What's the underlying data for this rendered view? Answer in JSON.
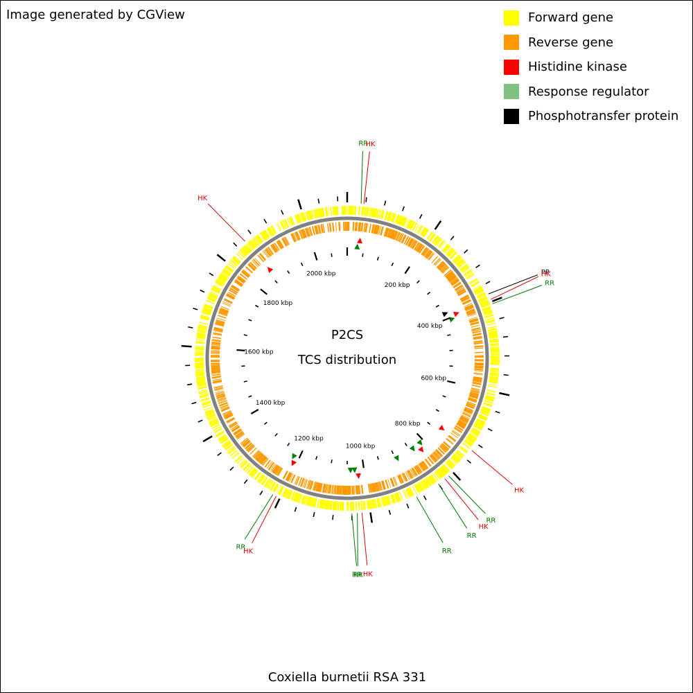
{
  "credit": "Image generated by CGView",
  "caption": "Coxiella burnetii RSA 331",
  "center": {
    "line1": "P2CS",
    "line2": "TCS distribution"
  },
  "legend": [
    {
      "label": "Forward gene",
      "color": "#ffff00"
    },
    {
      "label": "Reverse gene",
      "color": "#ff9900"
    },
    {
      "label": "Histidine kinase",
      "color": "#ff0000"
    },
    {
      "label": "Response regulator",
      "color": "#80c080"
    },
    {
      "label": "Phosphotransfer protein",
      "color": "#000000"
    }
  ],
  "colors": {
    "forward": "#ffff00",
    "reverse": "#ff9900",
    "hk": "#ff0000",
    "hk_label": "#dd0000",
    "rr_marker": "#008000",
    "rr_label": "#007700",
    "pp": "#000000",
    "backbone": "#808080"
  },
  "genome_length_kbp": 2100,
  "scale_labels": [
    "200 kbp",
    "400 kbp",
    "600 kbp",
    "800 kbp",
    "1000 kbp",
    "1200 kbp",
    "1400 kbp",
    "1600 kbp",
    "1800 kbp",
    "2000 kbp"
  ],
  "scale_positions_kbp": [
    200,
    400,
    600,
    800,
    1000,
    1200,
    1400,
    1600,
    1800,
    2000
  ],
  "features": [
    {
      "type": "RR",
      "pos_kbp": 30
    },
    {
      "type": "HK",
      "pos_kbp": 36
    },
    {
      "type": "PP",
      "pos_kbp": 382
    },
    {
      "type": "HK",
      "pos_kbp": 395
    },
    {
      "type": "RR",
      "pos_kbp": 405
    },
    {
      "type": "HK",
      "pos_kbp": 738
    },
    {
      "type": "RR",
      "pos_kbp": 812
    },
    {
      "type": "HK",
      "pos_kbp": 822
    },
    {
      "type": "RR",
      "pos_kbp": 840
    },
    {
      "type": "RR",
      "pos_kbp": 895
    },
    {
      "type": "HK",
      "pos_kbp": 1018
    },
    {
      "type": "RR",
      "pos_kbp": 1028
    },
    {
      "type": "RR",
      "pos_kbp": 1040
    },
    {
      "type": "HK",
      "pos_kbp": 1209
    },
    {
      "type": "RR",
      "pos_kbp": 1217
    },
    {
      "type": "HK",
      "pos_kbp": 1860
    }
  ],
  "callouts": [
    {
      "text": "RR",
      "type": "RR"
    },
    {
      "text": "HK",
      "type": "HK"
    },
    {
      "text": "PP",
      "type": "PP"
    },
    {
      "text": "HK",
      "type": "HK"
    },
    {
      "text": "RR",
      "type": "RR"
    },
    {
      "text": "HK",
      "type": "HK"
    },
    {
      "text": "RR",
      "type": "RR"
    },
    {
      "text": "HK",
      "type": "HK"
    },
    {
      "text": "RR",
      "type": "RR"
    },
    {
      "text": "RR",
      "type": "RR"
    },
    {
      "text": "HK",
      "type": "HK"
    },
    {
      "text": "RR",
      "type": "RR"
    },
    {
      "text": "RR",
      "type": "RR"
    },
    {
      "text": "HK",
      "type": "HK"
    },
    {
      "text": "RR",
      "type": "RR"
    },
    {
      "text": "HK",
      "type": "HK"
    }
  ]
}
